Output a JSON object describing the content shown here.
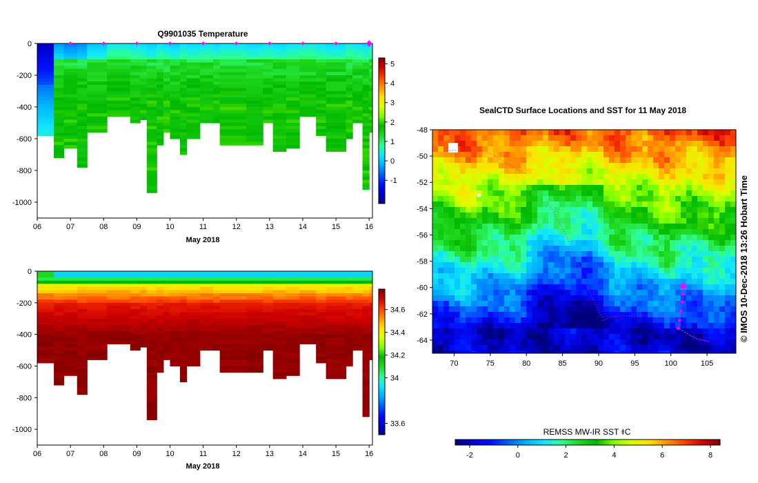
{
  "colors": {
    "jet": [
      "#00007f",
      "#0000d0",
      "#0010ff",
      "#0060ff",
      "#00b0ff",
      "#10e6ff",
      "#30ff90",
      "#20d820",
      "#00b800",
      "#80ff00",
      "#d8ff00",
      "#ffe000",
      "#ff9000",
      "#ff4000",
      "#d00000",
      "#800000"
    ],
    "float_marker": "#ff00ff"
  },
  "chart_data": [
    {
      "id": "temperature-section",
      "type": "heatmap",
      "title": "Q9901035  Temperature",
      "xlabel": "May 2018",
      "xlim": [
        6,
        16.1
      ],
      "x_ticks": [
        "06",
        "07",
        "08",
        "09",
        "10",
        "11",
        "12",
        "13",
        "14",
        "15",
        "16"
      ],
      "ylim": [
        -1100,
        0
      ],
      "y_ticks": [
        "0",
        "-200",
        "-400",
        "-600",
        "-800",
        "-1000"
      ],
      "colorbar_ticks": [
        "5",
        "4",
        "3",
        "2",
        "1",
        "0",
        "-1"
      ],
      "colorbar_range": [
        -2.2,
        5.3
      ],
      "profile_markers_x": [
        7,
        8,
        9,
        10,
        11,
        12,
        13,
        14,
        15,
        16
      ],
      "profiles": [
        {
          "x": 6.0,
          "depth": -580,
          "surface": -1.5
        },
        {
          "x": 6.5,
          "depth": -720,
          "surface": -0.3
        },
        {
          "x": 6.8,
          "depth": -660,
          "surface": -0.5
        },
        {
          "x": 7.2,
          "depth": -770,
          "surface": -0.4
        },
        {
          "x": 7.5,
          "depth": -560,
          "surface": 0.0
        },
        {
          "x": 8.1,
          "depth": -450,
          "surface": 0.4
        },
        {
          "x": 8.8,
          "depth": -500,
          "surface": 0.3
        },
        {
          "x": 9.1,
          "depth": -470,
          "surface": 0.2
        },
        {
          "x": 9.3,
          "depth": -940,
          "surface": 0.1
        },
        {
          "x": 9.6,
          "depth": -630,
          "surface": 0.3
        },
        {
          "x": 9.8,
          "depth": -560,
          "surface": 0.2
        },
        {
          "x": 10.0,
          "depth": -590,
          "surface": 0.1
        },
        {
          "x": 10.3,
          "depth": -700,
          "surface": 0.3
        },
        {
          "x": 10.5,
          "depth": -590,
          "surface": 0.2
        },
        {
          "x": 10.9,
          "depth": -490,
          "surface": 0.3
        },
        {
          "x": 11.3,
          "depth": -500,
          "surface": 0.2
        },
        {
          "x": 11.5,
          "depth": -630,
          "surface": 0.3
        },
        {
          "x": 12.3,
          "depth": -630,
          "surface": 0.2
        },
        {
          "x": 12.8,
          "depth": -500,
          "surface": 0.3
        },
        {
          "x": 13.1,
          "depth": -670,
          "surface": 0.2
        },
        {
          "x": 13.5,
          "depth": -650,
          "surface": 0.3
        },
        {
          "x": 13.9,
          "depth": -450,
          "surface": 0.4
        },
        {
          "x": 14.4,
          "depth": -580,
          "surface": 0.3
        },
        {
          "x": 14.7,
          "depth": -670,
          "surface": 0.2
        },
        {
          "x": 15.3,
          "depth": -590,
          "surface": 0.4
        },
        {
          "x": 15.5,
          "depth": -500,
          "surface": 0.3
        },
        {
          "x": 15.8,
          "depth": -910,
          "surface": 0.2
        },
        {
          "x": 16.0,
          "depth": -560,
          "surface": 0.4
        }
      ]
    },
    {
      "id": "salinity-section",
      "type": "heatmap",
      "title": "",
      "xlabel": "May 2018",
      "xlim": [
        6,
        16.1
      ],
      "x_ticks": [
        "06",
        "07",
        "08",
        "09",
        "10",
        "11",
        "12",
        "13",
        "14",
        "15",
        "16"
      ],
      "ylim": [
        -1100,
        0
      ],
      "y_ticks": [
        "0",
        "-200",
        "-400",
        "-600",
        "-800",
        "-1000"
      ],
      "colorbar_ticks": [
        "34.6",
        "34.4",
        "34.2",
        "34",
        "33.6"
      ],
      "colorbar_range": [
        33.5,
        34.78
      ],
      "profiles": [
        {
          "x": 6.0,
          "depth": -580
        },
        {
          "x": 6.5,
          "depth": -720
        },
        {
          "x": 6.8,
          "depth": -660
        },
        {
          "x": 7.2,
          "depth": -770
        },
        {
          "x": 7.5,
          "depth": -560
        },
        {
          "x": 8.1,
          "depth": -450
        },
        {
          "x": 8.8,
          "depth": -500
        },
        {
          "x": 9.1,
          "depth": -470
        },
        {
          "x": 9.3,
          "depth": -940
        },
        {
          "x": 9.6,
          "depth": -630
        },
        {
          "x": 9.8,
          "depth": -560
        },
        {
          "x": 10.0,
          "depth": -590
        },
        {
          "x": 10.3,
          "depth": -700
        },
        {
          "x": 10.5,
          "depth": -590
        },
        {
          "x": 10.9,
          "depth": -490
        },
        {
          "x": 11.3,
          "depth": -500
        },
        {
          "x": 11.5,
          "depth": -630
        },
        {
          "x": 12.3,
          "depth": -630
        },
        {
          "x": 12.8,
          "depth": -500
        },
        {
          "x": 13.1,
          "depth": -670
        },
        {
          "x": 13.5,
          "depth": -650
        },
        {
          "x": 13.9,
          "depth": -450
        },
        {
          "x": 14.4,
          "depth": -580
        },
        {
          "x": 14.7,
          "depth": -670
        },
        {
          "x": 15.3,
          "depth": -590
        },
        {
          "x": 15.5,
          "depth": -500
        },
        {
          "x": 15.8,
          "depth": -910
        },
        {
          "x": 16.0,
          "depth": -560
        }
      ]
    },
    {
      "id": "sst-map",
      "type": "heatmap",
      "title": "SealCTD Surface Locations and SST for 11 May 2018",
      "xlim": [
        67,
        109
      ],
      "ylim": [
        -65,
        -48
      ],
      "x_ticks": [
        "70",
        "75",
        "80",
        "85",
        "90",
        "95",
        "100",
        "105"
      ],
      "y_ticks": [
        "-48",
        "-50",
        "-52",
        "-54",
        "-56",
        "-58",
        "-60",
        "-62",
        "-64"
      ],
      "side_label": "© IMOS 10-Dec-2018 13:26 Hobart Time",
      "colorbar_label": "REMSS MW-IR SST ⯒C",
      "colorbar_ticks": [
        "-2",
        "0",
        "2",
        "4",
        "6",
        "8"
      ],
      "colorbar_range": [
        -2.6,
        8.4
      ],
      "current_location": {
        "lon": 101.7,
        "lat": -59.9
      },
      "track": [
        {
          "lon": 101.7,
          "lat": -59.9
        },
        {
          "lon": 101.7,
          "lat": -60.5
        },
        {
          "lon": 101.6,
          "lat": -61.1
        },
        {
          "lon": 101.4,
          "lat": -61.8
        },
        {
          "lon": 101.2,
          "lat": -62.5
        },
        {
          "lon": 101.0,
          "lat": -63.1
        },
        {
          "lon": 102.2,
          "lat": -63.5
        },
        {
          "lon": 103.6,
          "lat": -63.9
        },
        {
          "lon": 105.2,
          "lat": -64.1
        }
      ],
      "other_tracks": [
        [
          {
            "lon": 69,
            "lat": -49.6
          },
          {
            "lon": 72,
            "lat": -49.5
          },
          {
            "lon": 75,
            "lat": -49.8
          },
          {
            "lon": 78,
            "lat": -50.8
          },
          {
            "lon": 80,
            "lat": -51.4
          }
        ],
        [
          {
            "lon": 90.5,
            "lat": -62.5
          },
          {
            "lon": 92,
            "lat": -62.2
          },
          {
            "lon": 96,
            "lat": -62.1
          },
          {
            "lon": 99.5,
            "lat": -62.2
          }
        ],
        [
          {
            "lon": 83,
            "lat": -53.5
          },
          {
            "lon": 85.5,
            "lat": -56
          },
          {
            "lon": 88,
            "lat": -59.5
          },
          {
            "lon": 90.5,
            "lat": -62.3
          }
        ]
      ]
    }
  ]
}
